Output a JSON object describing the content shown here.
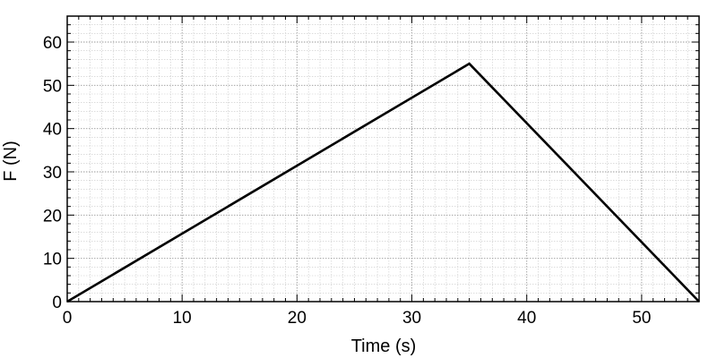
{
  "chart_data": {
    "type": "line",
    "title": "",
    "xlabel": "Time (s)",
    "ylabel": "F (N)",
    "xlim": [
      0,
      55
    ],
    "ylim": [
      0,
      66
    ],
    "x_ticks": [
      0,
      10,
      20,
      30,
      40,
      50
    ],
    "y_ticks": [
      0,
      10,
      20,
      30,
      40,
      50,
      60
    ],
    "x_tick_labels": [
      "0",
      "10",
      "20",
      "30",
      "40",
      "50"
    ],
    "y_tick_labels": [
      "0",
      "10",
      "20",
      "30",
      "40",
      "50",
      "60"
    ],
    "x_minor_step": 1,
    "y_minor_step": 2,
    "grid": true,
    "legend": "none",
    "series": [
      {
        "x": [
          0,
          35,
          55
        ],
        "y": [
          0,
          55,
          0
        ],
        "color": "#000000"
      }
    ]
  }
}
